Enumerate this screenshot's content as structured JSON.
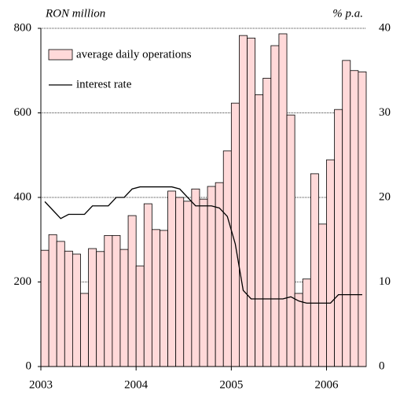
{
  "chart_data": {
    "type": "bar",
    "y_label": "RON million",
    "y2_label": "% p.a.",
    "categories": [
      "2003",
      null,
      null,
      null,
      null,
      null,
      null,
      null,
      null,
      null,
      null,
      null,
      "2004",
      null,
      null,
      null,
      null,
      null,
      null,
      null,
      null,
      null,
      null,
      null,
      "2005",
      null,
      null,
      null,
      null,
      null,
      null,
      null,
      null,
      null,
      null,
      null,
      "2006",
      null,
      null,
      null,
      null
    ],
    "series": [
      {
        "name": "average daily operations",
        "type": "bar",
        "color": "#ffd9d9",
        "values": [
          275,
          312,
          296,
          273,
          266,
          173,
          279,
          272,
          310,
          310,
          277,
          357,
          238,
          385,
          324,
          322,
          415,
          400,
          391,
          420,
          396,
          426,
          435,
          510,
          623,
          783,
          777,
          643,
          682,
          759,
          787,
          595,
          173,
          207,
          456,
          337,
          489,
          608,
          724,
          700,
          697
        ]
      },
      {
        "name": "interest rate",
        "type": "line",
        "color": "#000000",
        "axis": "y2",
        "values": [
          19.5,
          18.5,
          17.5,
          18,
          18,
          18,
          19,
          19,
          19,
          20,
          20,
          21,
          21.25,
          21.25,
          21.25,
          21.25,
          21.25,
          21,
          20,
          19,
          19,
          19,
          18.75,
          17.75,
          14.5,
          9,
          8,
          8,
          8,
          8,
          8,
          8.25,
          7.75,
          7.5,
          7.5,
          7.5,
          7.5,
          8.5,
          8.5,
          8.5,
          8.5
        ]
      }
    ],
    "ylim": [
      0,
      800
    ],
    "yticks": [
      0,
      200,
      400,
      600,
      800
    ],
    "y2lim": [
      0,
      40
    ],
    "y2ticks": [
      0,
      10,
      20,
      30,
      40
    ],
    "grid": true,
    "legend": "upper left"
  }
}
